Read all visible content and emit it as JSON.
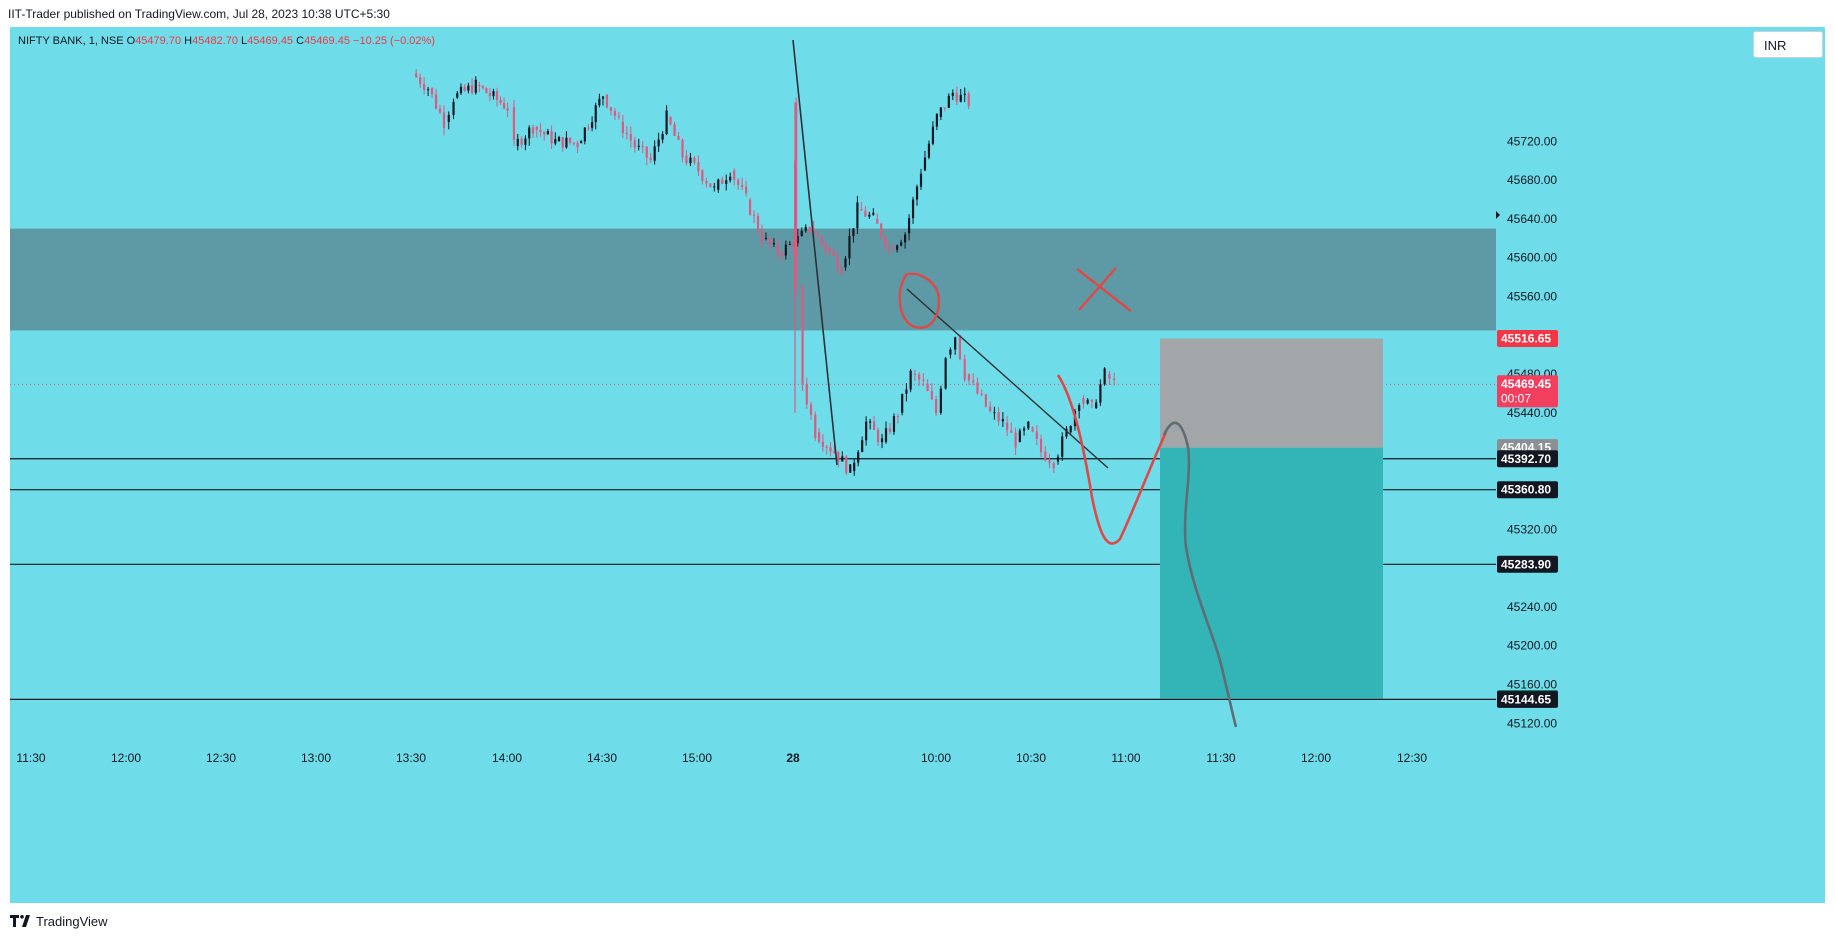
{
  "header": {
    "publisher_text": "IIT-Trader published on TradingView.com, Jul 28, 2023 10:38 UTC+5:30"
  },
  "legend": {
    "symbol": "NIFTY BANK, 1, NSE",
    "open_label": "O",
    "open": "45479.70",
    "high_label": "H",
    "high": "45482.70",
    "low_label": "L",
    "low": "45469.45",
    "close_label": "C",
    "close": "45469.45",
    "change": "−10.25 (−0.02%)"
  },
  "currency_button": {
    "label": "INR"
  },
  "footer": {
    "brand": "TradingView"
  },
  "colors": {
    "background": "#6edde9",
    "zone": "#5e9aa5",
    "stop_box": "#a3a6a8",
    "target_box": "#33b5b8",
    "bull_candle": "#131722",
    "bear_candle": "#e0587f",
    "pen_red": "#e04848",
    "pen_grey": "#5f6d73",
    "last_price": "#f23f5f"
  },
  "chart_data": {
    "type": "candlestick",
    "symbol": "NIFTY BANK",
    "interval": "1",
    "exchange": "NSE",
    "ylim": [
      45110,
      45778
    ],
    "y_ticks": [
      "45720.00",
      "45680.00",
      "45640.00",
      "45600.00",
      "45560.00",
      "45480.00",
      "45440.00",
      "45320.00",
      "45240.00",
      "45200.00",
      "45160.00",
      "45120.00"
    ],
    "x_ticks": [
      "11:30",
      "12:00",
      "12:30",
      "13:00",
      "13:30",
      "14:00",
      "14:30",
      "15:00",
      "28",
      "10:00",
      "10:30",
      "11:00",
      "11:30",
      "12:00",
      "12:30"
    ],
    "price_path": [
      [
        "13:00",
        45790
      ],
      [
        "13:05",
        45775
      ],
      [
        "13:10",
        45740
      ],
      [
        "13:13",
        45765
      ],
      [
        "13:20",
        45778
      ],
      [
        "13:30",
        45755
      ],
      [
        "13:32",
        45715
      ],
      [
        "13:38",
        45735
      ],
      [
        "13:45",
        45720
      ],
      [
        "13:52",
        45718
      ],
      [
        "14:00",
        45768
      ],
      [
        "14:05",
        45740
      ],
      [
        "14:10",
        45715
      ],
      [
        "14:15",
        45700
      ],
      [
        "14:20",
        45745
      ],
      [
        "14:25",
        45705
      ],
      [
        "14:30",
        45690
      ],
      [
        "14:35",
        45670
      ],
      [
        "14:40",
        45690
      ],
      [
        "14:45",
        45660
      ],
      [
        "14:50",
        45620
      ],
      [
        "14:55",
        45605
      ],
      [
        "15:00",
        45615
      ],
      [
        "15:05",
        45630
      ],
      [
        "15:10",
        45610
      ],
      [
        "15:15",
        45590
      ],
      [
        "15:20",
        45650
      ],
      [
        "15:25",
        45640
      ],
      [
        "15:30",
        45610
      ],
      [
        "15:35",
        45625
      ],
      [
        "15:40",
        45690
      ],
      [
        "15:45",
        45745
      ],
      [
        "15:50",
        45770
      ],
      [
        "15:55",
        45760
      ],
      [
        "09:15",
        45760
      ],
      [
        "09:16",
        45570
      ],
      [
        "09:18",
        45470
      ],
      [
        "09:22",
        45420
      ],
      [
        "09:28",
        45400
      ],
      [
        "09:33",
        45380
      ],
      [
        "09:38",
        45430
      ],
      [
        "09:43",
        45410
      ],
      [
        "09:48",
        45440
      ],
      [
        "09:52",
        45480
      ],
      [
        "09:56",
        45470
      ],
      [
        "10:00",
        45440
      ],
      [
        "10:03",
        45500
      ],
      [
        "10:06",
        45520
      ],
      [
        "10:09",
        45480
      ],
      [
        "10:13",
        45460
      ],
      [
        "10:17",
        45440
      ],
      [
        "10:21",
        45430
      ],
      [
        "10:25",
        45410
      ],
      [
        "10:29",
        45425
      ],
      [
        "10:33",
        45400
      ],
      [
        "10:37",
        45390
      ],
      [
        "10:41",
        45420
      ],
      [
        "10:45",
        45455
      ],
      [
        "10:49",
        45445
      ],
      [
        "10:53",
        45480
      ],
      [
        "10:56",
        45470
      ]
    ],
    "horizontal_lines": [
      45392.7,
      45360.8,
      45283.9,
      45144.65
    ],
    "zone": {
      "low": 45525,
      "high": 45630
    },
    "position": {
      "entry": 45404.15,
      "stop": 45516.65,
      "target": 45145.6
    },
    "price_labels": [
      {
        "value": 45516.65,
        "text": "45516.65",
        "color": "#f23645"
      },
      {
        "value": 45469.45,
        "text": "45469.45",
        "sub": "00:07",
        "color": "#f23f5f"
      },
      {
        "value": 45404.15,
        "text": "45404.15",
        "color": "#8c8f94"
      },
      {
        "value": 45392.7,
        "text": "45392.70",
        "color": "#131722"
      },
      {
        "value": 45360.8,
        "text": "45360.80",
        "color": "#131722"
      },
      {
        "value": 45283.9,
        "text": "45283.90",
        "color": "#131722"
      },
      {
        "value": 45145.6,
        "text": "45145.60",
        "color": "#089981"
      },
      {
        "value": 45144.65,
        "text": "45144.65",
        "color": "#131722"
      }
    ],
    "last_price": 45469.45
  }
}
